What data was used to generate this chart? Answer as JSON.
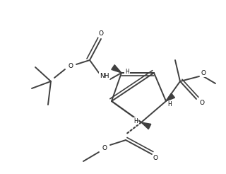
{
  "bg_color": "#ffffff",
  "line_color": "#404040",
  "lw": 1.4,
  "lw_double": 1.2,
  "figsize": [
    3.2,
    2.46
  ],
  "dpi": 100,
  "xlim": [
    0,
    320
  ],
  "ylim": [
    0,
    246
  ]
}
